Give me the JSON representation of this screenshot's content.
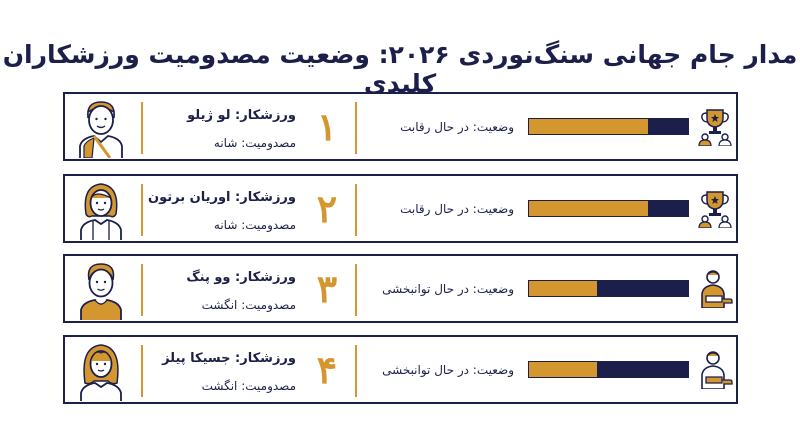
{
  "title": "مدار جام جهانی سنگ‌نوردی ۲۰۲۶: وضعیت مصدومیت ورزشکاران کلیدی",
  "colors": {
    "navy": "#1c1f4a",
    "gold": "#d4962f"
  },
  "athletes": [
    {
      "rank": "۱",
      "name": "ورزشکار: لو ژیلو",
      "injury": "مصدومیت: شانه",
      "status": "وضعیت: در حال رقابت",
      "progress": 0.75,
      "status_icon": "trophy-icon",
      "avatar": "male-athlete-avatar-icon"
    },
    {
      "rank": "۲",
      "name": "ورزشکار: اوریان برتون",
      "injury": "مصدومیت: شانه",
      "status": "وضعیت: در حال رقابت",
      "progress": 0.75,
      "status_icon": "trophy-icon",
      "avatar": "female-athlete-avatar-icon"
    },
    {
      "rank": "۳",
      "name": "ورزشکار: وو پنگ",
      "injury": "مصدومیت: انگشت",
      "status": "وضعیت: در حال توانبخشی",
      "progress": 0.43,
      "status_icon": "injured-person-icon",
      "avatar": "male-athlete-avatar-icon"
    },
    {
      "rank": "۴",
      "name": "ورزشکار: جسیکا پیلز",
      "injury": "مصدومیت: انگشت",
      "status": "وضعیت: در حال توانبخشی",
      "progress": 0.43,
      "status_icon": "injured-person-icon",
      "avatar": "female-athlete-avatar-icon"
    }
  ]
}
